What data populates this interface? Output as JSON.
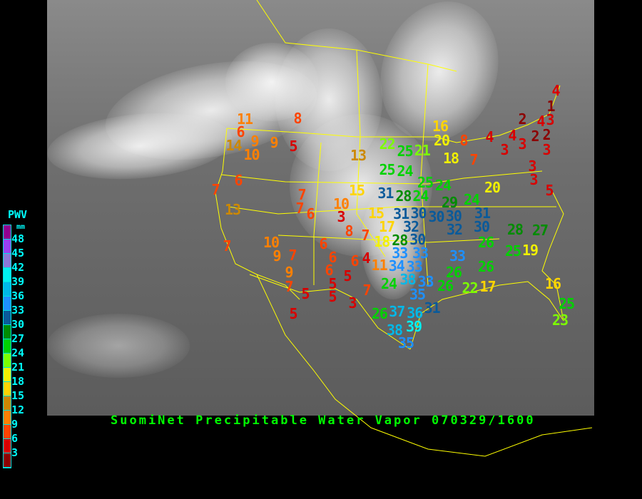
{
  "caption": "SuomiNet Precipitable Water Vapor 070329/1600",
  "legend": {
    "title": "PWV",
    "unit": "mm",
    "ticks": [
      "48",
      "45",
      "42",
      "39",
      "36",
      "33",
      "30",
      "27",
      "24",
      "21",
      "18",
      "15",
      "12",
      "9",
      "6",
      "3"
    ],
    "colors": [
      "#900090",
      "#9a40f0",
      "#8a78d8",
      "#00f0f0",
      "#00b8e8",
      "#1e90ff",
      "#0a5a9a",
      "#008c00",
      "#00d200",
      "#7cff00",
      "#f0f000",
      "#ffd400",
      "#cc8800",
      "#ff8000",
      "#ff4400",
      "#d80000",
      "#8c0000"
    ]
  },
  "colors": {
    "borders": "#ffff00",
    "caption": "#00ff00",
    "legend_text": "#00ffff",
    "background": "#000000"
  },
  "stations": [
    {
      "value": "11"
    },
    {
      "value": "6"
    },
    {
      "value": "14"
    },
    {
      "value": "9"
    },
    {
      "value": "9"
    },
    {
      "value": "10"
    },
    {
      "value": "8"
    },
    {
      "value": "5"
    },
    {
      "value": "13"
    },
    {
      "value": "6"
    },
    {
      "value": "7"
    },
    {
      "value": "13"
    },
    {
      "value": "7"
    },
    {
      "value": "7"
    },
    {
      "value": "6"
    },
    {
      "value": "10"
    },
    {
      "value": "3"
    },
    {
      "value": "15"
    },
    {
      "value": "15"
    },
    {
      "value": "8"
    },
    {
      "value": "7"
    },
    {
      "value": "6"
    },
    {
      "value": "10"
    },
    {
      "value": "9"
    },
    {
      "value": "7"
    },
    {
      "value": "7"
    },
    {
      "value": "9"
    },
    {
      "value": "7"
    },
    {
      "value": "5"
    },
    {
      "value": "5"
    },
    {
      "value": "6"
    },
    {
      "value": "6"
    },
    {
      "value": "6"
    },
    {
      "value": "4"
    },
    {
      "value": "11"
    },
    {
      "value": "5"
    },
    {
      "value": "5"
    },
    {
      "value": "5"
    },
    {
      "value": "7"
    },
    {
      "value": "3"
    },
    {
      "value": "22"
    },
    {
      "value": "25"
    },
    {
      "value": "21"
    },
    {
      "value": "25"
    },
    {
      "value": "24"
    },
    {
      "value": "25"
    },
    {
      "value": "24"
    },
    {
      "value": "24"
    },
    {
      "value": "31"
    },
    {
      "value": "28"
    },
    {
      "value": "30"
    },
    {
      "value": "30"
    },
    {
      "value": "30"
    },
    {
      "value": "29"
    },
    {
      "value": "24"
    },
    {
      "value": "31"
    },
    {
      "value": "31"
    },
    {
      "value": "32"
    },
    {
      "value": "30"
    },
    {
      "value": "32"
    },
    {
      "value": "30"
    },
    {
      "value": "28"
    },
    {
      "value": "27"
    },
    {
      "value": "20"
    },
    {
      "value": "16"
    },
    {
      "value": "20"
    },
    {
      "value": "18"
    },
    {
      "value": "8"
    },
    {
      "value": "7"
    },
    {
      "value": "4"
    },
    {
      "value": "4"
    },
    {
      "value": "3"
    },
    {
      "value": "3"
    },
    {
      "value": "2"
    },
    {
      "value": "2"
    },
    {
      "value": "2"
    },
    {
      "value": "4"
    },
    {
      "value": "3"
    },
    {
      "value": "1"
    },
    {
      "value": "4"
    },
    {
      "value": "3"
    },
    {
      "value": "3"
    },
    {
      "value": "3"
    },
    {
      "value": "5"
    },
    {
      "value": "17"
    },
    {
      "value": "18"
    },
    {
      "value": "28"
    },
    {
      "value": "33"
    },
    {
      "value": "33"
    },
    {
      "value": "34"
    },
    {
      "value": "33"
    },
    {
      "value": "38"
    },
    {
      "value": "33"
    },
    {
      "value": "24"
    },
    {
      "value": "35"
    },
    {
      "value": "31"
    },
    {
      "value": "26"
    },
    {
      "value": "37"
    },
    {
      "value": "36"
    },
    {
      "value": "38"
    },
    {
      "value": "39"
    },
    {
      "value": "35"
    },
    {
      "value": "33"
    },
    {
      "value": "26"
    },
    {
      "value": "26"
    },
    {
      "value": "22"
    },
    {
      "value": "17"
    },
    {
      "value": "26"
    },
    {
      "value": "26"
    },
    {
      "value": "25"
    },
    {
      "value": "19"
    },
    {
      "value": "16"
    },
    {
      "value": "25"
    },
    {
      "value": "23"
    }
  ]
}
